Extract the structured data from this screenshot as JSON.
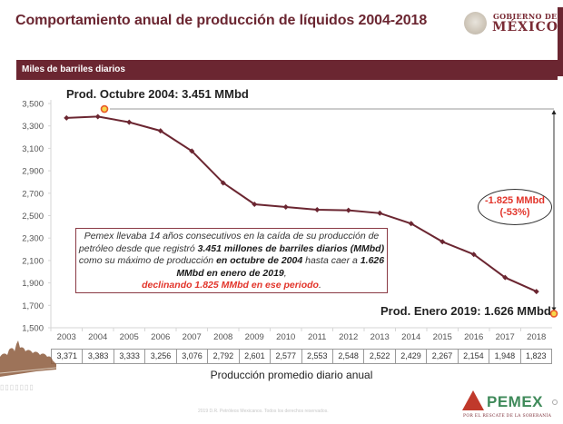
{
  "header": {
    "title": "Comportamiento anual de producción de líquidos 2004-2018",
    "logo_line1": "GOBIERNO DE",
    "logo_line2": "MÉXICO"
  },
  "band_label": "Miles de barriles diarios",
  "annotations": {
    "peak": "Prod. Octubre 2004: 3.451 MMbd",
    "latest": "Prod. Enero 2019: 1.626 MMbd",
    "decline_value": "-1.825 MMbd",
    "decline_pct": "(-53%)",
    "peak_value": 3451,
    "latest_value": 1626
  },
  "textbox": {
    "p1": "Pemex llevaba 14 años consecutivos en la caída de su producción de petróleo desde que registró ",
    "b1": "3.451 millones de barriles diarios (MMbd)",
    "p2": " como su máximo de producción ",
    "b2": "en octubre de 2004",
    "p3": " hasta caer a ",
    "b3": "1.626 MMbd en enero de 2019",
    "p4": ",",
    "red": "declinando 1.825 MMbd en ese periodo",
    "p5": "."
  },
  "table_caption": "Producción promedio diario anual",
  "footer": {
    "copyright": "2019 D.R. Petróleos Mexicanos. Todos los derechos reservados.",
    "pemex_word": "PEMEX",
    "pemex_tagline": "POR EL RESCATE DE LA SOBERANÍA"
  },
  "colors": {
    "brand": "#6b2631",
    "line": "#6b2631",
    "accent_red": "#e2342a",
    "marker_orange": "#f0a020"
  },
  "chart_data": {
    "type": "line",
    "title": "Comportamiento anual de producción de líquidos 2004-2018",
    "ylabel": "Miles de barriles diarios",
    "xlabel": "Producción promedio diario anual",
    "categories": [
      "2003",
      "2004",
      "2005",
      "2006",
      "2007",
      "2008",
      "2009",
      "2010",
      "2011",
      "2012",
      "2013",
      "2014",
      "2015",
      "2016",
      "2017",
      "2018"
    ],
    "values": [
      3371,
      3383,
      3333,
      3256,
      3076,
      2792,
      2601,
      2577,
      2553,
      2548,
      2522,
      2429,
      2267,
      2154,
      1948,
      1823
    ],
    "value_labels": [
      "3,371",
      "3,383",
      "3,333",
      "3,256",
      "3,076",
      "2,792",
      "2,601",
      "2,577",
      "2,553",
      "2,548",
      "2,522",
      "2,429",
      "2,267",
      "2,154",
      "1,948",
      "1,823"
    ],
    "ylim": [
      1500,
      3500
    ],
    "yticks": [
      1500,
      1700,
      1900,
      2100,
      2300,
      2500,
      2700,
      2900,
      3100,
      3300,
      3500
    ],
    "ytick_labels": [
      "1,500",
      "1,700",
      "1,900",
      "2,100",
      "2,300",
      "2,500",
      "2,700",
      "2,900",
      "3,100",
      "3,300",
      "3,500"
    ],
    "grid": false,
    "legend": "none"
  }
}
